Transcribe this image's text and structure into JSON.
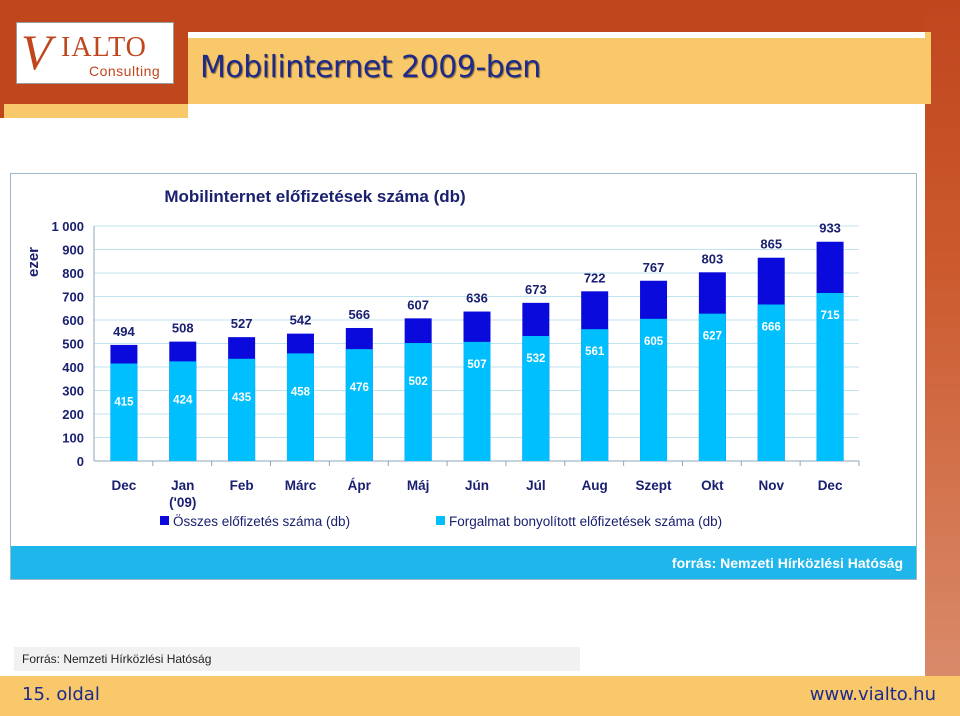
{
  "slide": {
    "title": "Mobilinternet 2009-ben",
    "source_caption": "Forrás: Nemzeti Hírközlési Hatóság",
    "page_number": "15. oldal",
    "website": "www.vialto.hu"
  },
  "logo": {
    "initial": "V",
    "word": "IALTO",
    "subword": "Consulting"
  },
  "colors": {
    "header": "#c0461e",
    "accent": "#f9c86a",
    "title_text": "#1d2a8c",
    "series_total": "#0a0adc",
    "series_active": "#00bfff",
    "banner": "#1fb6ec"
  },
  "chart_data": {
    "type": "bar",
    "title": "Mobilinternet előfizetések száma  (db)",
    "ylabel": "ezer",
    "xlabel": "",
    "ylim": [
      0,
      1000
    ],
    "yticks": [
      "0",
      "100",
      "200",
      "300",
      "400",
      "500",
      "600",
      "700",
      "800",
      "900",
      "1 000"
    ],
    "categories": [
      "Dec",
      "Jan",
      "Feb",
      "Márc",
      "Ápr",
      "Máj",
      "Jún",
      "Júl",
      "Aug",
      "Szept",
      "Okt",
      "Nov",
      "Dec"
    ],
    "category_sublabels": [
      "",
      "('09)",
      "",
      "",
      "",
      "",
      "",
      "",
      "",
      "",
      "",
      "",
      ""
    ],
    "series": [
      {
        "name": "Összes előfizetés száma (db)",
        "values": [
          494,
          508,
          527,
          542,
          566,
          607,
          636,
          673,
          722,
          767,
          803,
          865,
          933
        ]
      },
      {
        "name": "Forgalmat bonyolított előfizetések száma (db)",
        "values": [
          415,
          424,
          435,
          458,
          476,
          502,
          507,
          532,
          561,
          605,
          627,
          666,
          715
        ]
      }
    ],
    "legend": "bottom",
    "source_banner": "forrás: Nemzeti Hírközlési Hatóság"
  }
}
